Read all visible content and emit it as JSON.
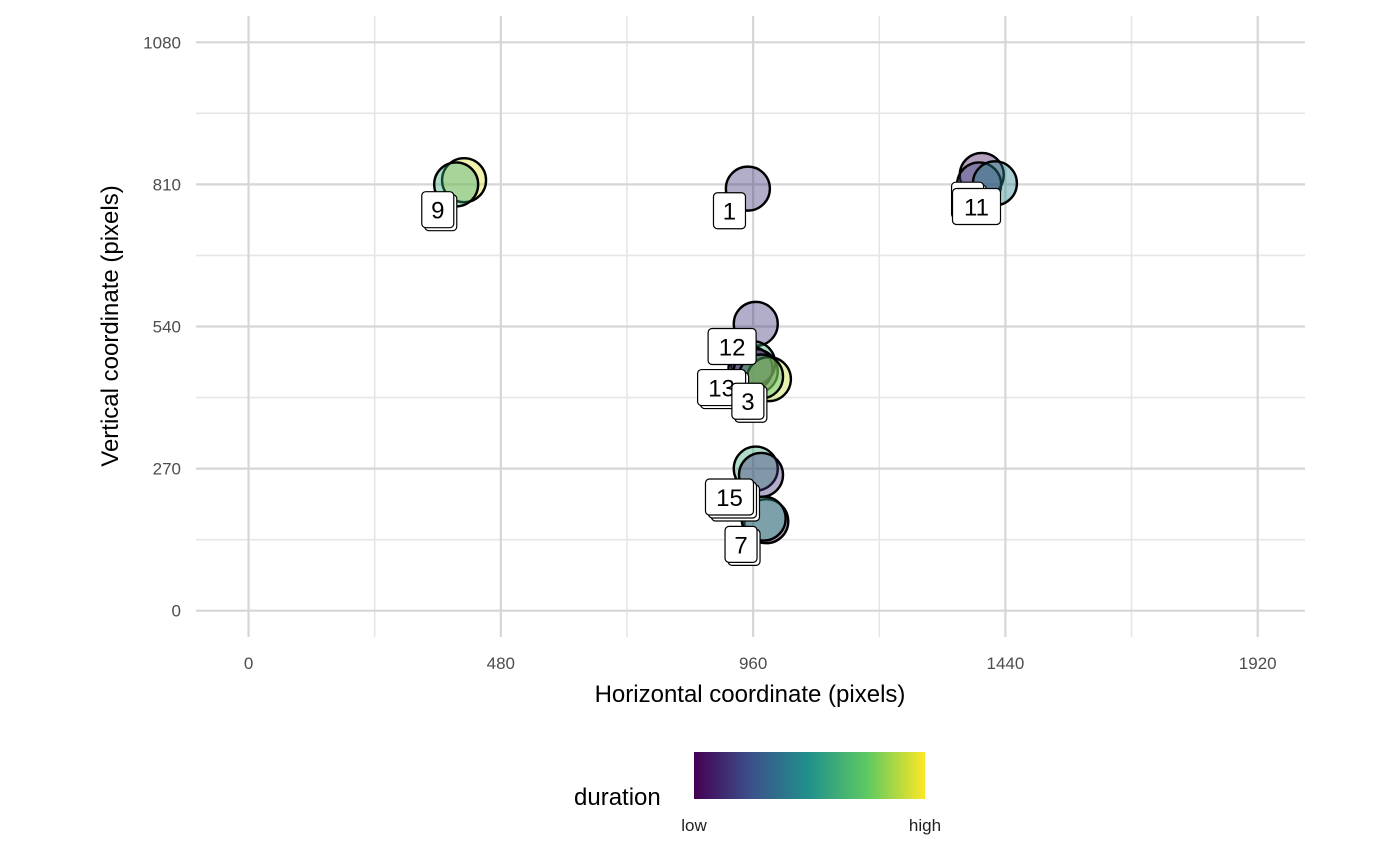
{
  "chart_data": {
    "type": "scatter",
    "title": "",
    "xlabel": "Horizontal coordinate (pixels)",
    "ylabel": "Vertical coordinate (pixels)",
    "xlim": [
      -100,
      2010
    ],
    "ylim": [
      -50,
      1130
    ],
    "x_ticks": [
      "0",
      "480",
      "960",
      "1440",
      "1920"
    ],
    "y_ticks": [
      "0",
      "270",
      "540",
      "810",
      "1080"
    ],
    "x_tick_values": [
      0,
      480,
      960,
      1440,
      1920
    ],
    "y_tick_values": [
      0,
      270,
      540,
      810,
      1080
    ],
    "x_minor": [
      240,
      720,
      1200,
      1680
    ],
    "y_minor": [
      135,
      405,
      675,
      945
    ],
    "grid": true,
    "color_scale": "viridis",
    "legend": {
      "title": "duration",
      "low_label": "low",
      "high_label": "high",
      "position": "bottom"
    },
    "points": [
      {
        "x": 410,
        "y": 818,
        "duration": 0.95
      },
      {
        "x": 395,
        "y": 810,
        "duration": 0.6
      },
      {
        "x": 950,
        "y": 802,
        "duration": 0.15
      },
      {
        "x": 1395,
        "y": 828,
        "duration": 0.05
      },
      {
        "x": 1390,
        "y": 810,
        "duration": 0.2
      },
      {
        "x": 1420,
        "y": 812,
        "duration": 0.45
      },
      {
        "x": 965,
        "y": 545,
        "duration": 0.15
      },
      {
        "x": 960,
        "y": 470,
        "duration": 0.6
      },
      {
        "x": 955,
        "y": 460,
        "duration": 0.1
      },
      {
        "x": 965,
        "y": 455,
        "duration": 0.05
      },
      {
        "x": 990,
        "y": 440,
        "duration": 0.9
      },
      {
        "x": 975,
        "y": 445,
        "duration": 0.7
      },
      {
        "x": 965,
        "y": 270,
        "duration": 0.6
      },
      {
        "x": 975,
        "y": 258,
        "duration": 0.15
      },
      {
        "x": 985,
        "y": 170,
        "duration": 0.1
      },
      {
        "x": 980,
        "y": 175,
        "duration": 0.55
      }
    ],
    "labels": [
      {
        "text": "9",
        "x": 360,
        "y": 762,
        "stack": 2
      },
      {
        "text": "1",
        "x": 915,
        "y": 760,
        "stack": 1
      },
      {
        "text": "1",
        "x": 1368,
        "y": 780,
        "stack": 3
      },
      {
        "text": "11",
        "x": 1385,
        "y": 768,
        "stack": 1
      },
      {
        "text": "12",
        "x": 920,
        "y": 502,
        "stack": 1
      },
      {
        "text": "13",
        "x": 900,
        "y": 424,
        "stack": 2
      },
      {
        "text": "3",
        "x": 950,
        "y": 398,
        "stack": 2
      },
      {
        "text": "15",
        "x": 915,
        "y": 216,
        "stack": 3
      },
      {
        "text": "7",
        "x": 937,
        "y": 126,
        "stack": 2
      }
    ]
  }
}
